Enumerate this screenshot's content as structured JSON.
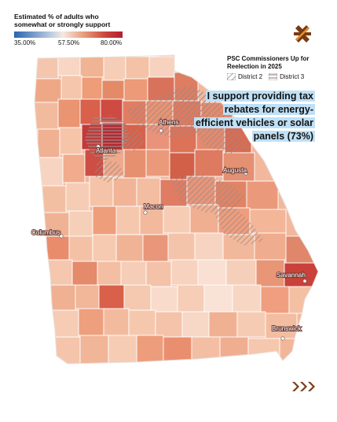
{
  "legend": {
    "title": "Estimated % of adults who somewhat or strongly support",
    "ticks": [
      "35.00%",
      "57.50%",
      "80.00%"
    ]
  },
  "district_legend": {
    "title": "PSC Commissioners Up for Reelection in 2025",
    "district2": "District 2",
    "district3": "District 3"
  },
  "headline": "I support providing tax rebates for energy-efficient vehicles or solar panels (73%)",
  "cities": [
    "Athens",
    "Atlanta",
    "Augusta",
    "Macon",
    "Columbus",
    "Savannah",
    "Brunswick"
  ],
  "colors": {
    "low": "#2a64b0",
    "mid": "#f6e9e2",
    "high": "#b31e2e",
    "county_light": "#f6cdb6",
    "county_medium": "#ee9f7d",
    "county_dark": "#d9604a",
    "headline_bg": "#bfe0f6",
    "brand": "#7a3a12"
  },
  "icons": [
    "cross-logo-icon",
    "chevrons-icon"
  ]
}
